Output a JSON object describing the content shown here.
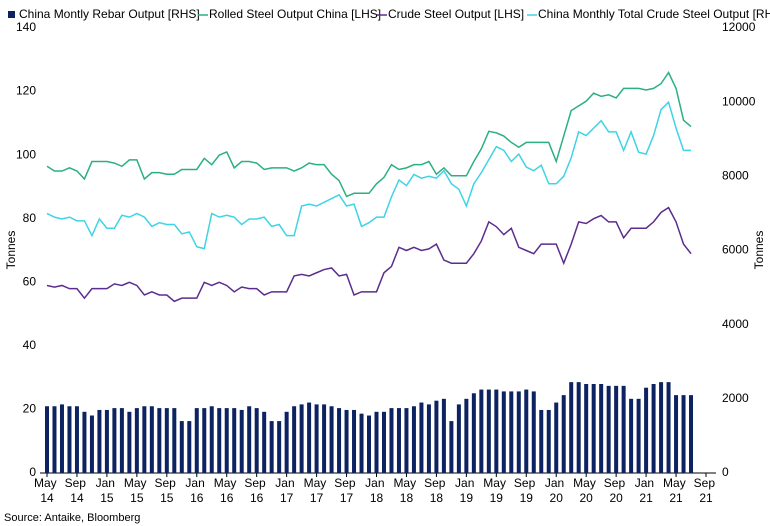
{
  "chart_data": {
    "type": "bar-line",
    "categories": [
      "May 14",
      null,
      null,
      null,
      "Sep 14",
      null,
      null,
      null,
      "Jan 15",
      null,
      null,
      null,
      "May 15",
      null,
      null,
      null,
      "Sep 15",
      null,
      null,
      null,
      "Jan 16",
      null,
      null,
      null,
      "May 16",
      null,
      null,
      null,
      "Sep 16",
      null,
      null,
      null,
      "Jan 17",
      null,
      null,
      null,
      "May 17",
      null,
      null,
      null,
      "Sep 17",
      null,
      null,
      null,
      "Jan 18",
      null,
      null,
      null,
      "May 18",
      null,
      null,
      null,
      "Sep 18",
      null,
      null,
      null,
      "Jan 19",
      null,
      null,
      null,
      "May 19",
      null,
      null,
      null,
      "Sep 19",
      null,
      null,
      null,
      "Jan 20",
      null,
      null,
      null,
      "May 20",
      null,
      null,
      null,
      "Sep 20",
      null,
      null,
      null,
      "Jan 21",
      null,
      null,
      null,
      "May 21",
      null,
      null,
      null,
      "Sep 21"
    ],
    "series": [
      {
        "name": "China Montly Rebar Output [RHS]",
        "type": "bar",
        "axis": "y2",
        "color": "#0d2260",
        "values": [
          1800,
          1800,
          1850,
          1800,
          1800,
          1650,
          1550,
          1700,
          1700,
          1750,
          1750,
          1650,
          1750,
          1800,
          1800,
          1750,
          1750,
          1750,
          1400,
          1400,
          1750,
          1750,
          1800,
          1750,
          1750,
          1750,
          1700,
          1800,
          1750,
          1650,
          1400,
          1400,
          1650,
          1800,
          1850,
          1900,
          1850,
          1850,
          1800,
          1750,
          1700,
          1700,
          1600,
          1550,
          1650,
          1650,
          1750,
          1750,
          1750,
          1800,
          1900,
          1850,
          1950,
          2000,
          1400,
          1850,
          2000,
          2150,
          2250,
          2250,
          2250,
          2200,
          2200,
          2200,
          2250,
          2200,
          1700,
          1700,
          1900,
          2100,
          2450,
          2450,
          2400,
          2400,
          2400,
          2350,
          2350,
          2350,
          2000,
          2000,
          2300,
          2400,
          2450,
          2450,
          2100,
          2100,
          2100,
          null,
          null
        ]
      },
      {
        "name": "Rolled Steel Output China [LHS]",
        "type": "line",
        "color": "#2bb07f",
        "values": [
          96.5,
          95,
          95,
          96,
          95,
          92.5,
          98,
          98,
          98,
          97.5,
          96.5,
          98.5,
          98.5,
          92.5,
          94.5,
          94.5,
          94,
          94,
          95.5,
          95.5,
          95.5,
          99,
          97,
          100,
          101,
          96,
          98,
          98,
          97.5,
          95.5,
          96,
          96,
          96,
          95,
          96,
          97.5,
          97,
          97,
          94,
          92,
          87,
          88,
          88,
          88,
          91,
          93,
          97,
          95.5,
          96,
          97,
          97,
          98,
          94,
          96,
          93.5,
          93.5,
          93.5,
          98,
          102,
          107.5,
          107,
          106,
          104,
          102.5,
          104,
          104,
          104,
          104,
          98,
          106,
          114,
          115.5,
          117,
          119.5,
          118.5,
          119,
          118,
          121,
          121,
          121,
          120.5,
          121,
          122.5,
          126,
          121,
          111,
          109,
          null,
          null
        ]
      },
      {
        "name": "Crude Steel Output [LHS]",
        "type": "line",
        "color": "#5b2d8e",
        "values": [
          59,
          58.5,
          59,
          58,
          58,
          55,
          58,
          58,
          58,
          59.5,
          59,
          60,
          59,
          56,
          57,
          56,
          56,
          54,
          55,
          55,
          55,
          60,
          59,
          60,
          59,
          57,
          58.5,
          58,
          58,
          56,
          57,
          57,
          57,
          62,
          62.5,
          62,
          63,
          64,
          64.5,
          62,
          62.5,
          56,
          57,
          57,
          57,
          63,
          65,
          71,
          70,
          71,
          70,
          70.5,
          72,
          67,
          66,
          66,
          66,
          69,
          73,
          79,
          77.5,
          75,
          77,
          71,
          70,
          69,
          72,
          72,
          72,
          66,
          72,
          79,
          78.5,
          80,
          81,
          79,
          79,
          74,
          77,
          77,
          77,
          79,
          82,
          83.5,
          79,
          72,
          69,
          null,
          null
        ]
      },
      {
        "name": "China Monthly Total Crude Steel Output [RHS]",
        "type": "line",
        "axis": "y2",
        "color": "#3fd3e6",
        "values": [
          7000,
          6900,
          6850,
          6900,
          6800,
          6800,
          6400,
          6850,
          6600,
          6600,
          6950,
          6900,
          7000,
          6900,
          6650,
          6750,
          6700,
          6700,
          6450,
          6500,
          6100,
          6050,
          7000,
          6900,
          6950,
          6900,
          6700,
          6850,
          6850,
          6900,
          6650,
          6700,
          6400,
          6400,
          7200,
          7250,
          7200,
          7300,
          7400,
          7500,
          7200,
          7250,
          6650,
          6750,
          6900,
          6900,
          7450,
          7900,
          7750,
          8050,
          7950,
          8000,
          7950,
          8150,
          7800,
          7650,
          7200,
          7800,
          8100,
          8450,
          8800,
          8700,
          8400,
          8600,
          8250,
          8150,
          8300,
          7800,
          7800,
          8000,
          8500,
          9200,
          9100,
          9300,
          9500,
          9200,
          9200,
          8700,
          9200,
          8650,
          8600,
          9100,
          9800,
          10000,
          9300,
          8700,
          8700,
          null,
          null
        ]
      }
    ],
    "ylabel": "Tonnes",
    "y2label": "Tonnes",
    "ylim": [
      0,
      140
    ],
    "yticks": [
      0,
      20,
      40,
      60,
      80,
      100,
      120,
      140
    ],
    "y2lim": [
      0,
      12000
    ],
    "y2ticks": [
      0,
      2000,
      4000,
      6000,
      8000,
      10000,
      12000
    ],
    "source": "Source: Antaike, Bloomberg",
    "legend": "top"
  }
}
